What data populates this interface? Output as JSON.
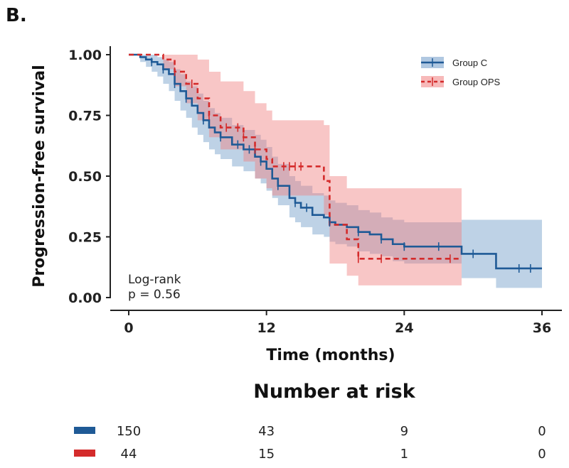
{
  "panel_label": "B.",
  "chart_data": {
    "type": "line",
    "subtype": "kaplan-meier",
    "title": "",
    "xlabel": "Time (months)",
    "ylabel": "Progression-free survival",
    "xlim": [
      0,
      36
    ],
    "ylim": [
      0,
      1
    ],
    "xticks": [
      0,
      12,
      24,
      36
    ],
    "yticks": [
      0.0,
      0.25,
      0.5,
      0.75,
      1.0
    ],
    "ytick_labels": [
      "0.00",
      "0.25",
      "0.50",
      "0.75",
      "1.00"
    ],
    "xtick_labels": [
      "0",
      "12",
      "24",
      "36"
    ],
    "legend_position": "top-right",
    "annotation": [
      "Log-rank",
      "p = 0.56"
    ],
    "series": [
      {
        "name": "Group C",
        "color": "#1f5a96",
        "band_color": "#6f9bc8",
        "style": "solid",
        "x": [
          0,
          1,
          1.5,
          2,
          2.5,
          3,
          3.5,
          4,
          4.5,
          5,
          5.5,
          6,
          6.5,
          7,
          7.5,
          8,
          9,
          10,
          11,
          11.5,
          12,
          12.5,
          13,
          14,
          14.5,
          15,
          16,
          17,
          17.5,
          18,
          19,
          20,
          21,
          22,
          23,
          24,
          29,
          32,
          36
        ],
        "y": [
          1.0,
          0.99,
          0.98,
          0.97,
          0.96,
          0.94,
          0.92,
          0.88,
          0.85,
          0.82,
          0.79,
          0.76,
          0.73,
          0.7,
          0.68,
          0.66,
          0.63,
          0.61,
          0.58,
          0.56,
          0.53,
          0.49,
          0.46,
          0.41,
          0.39,
          0.37,
          0.34,
          0.33,
          0.31,
          0.3,
          0.29,
          0.27,
          0.26,
          0.24,
          0.22,
          0.21,
          0.18,
          0.12,
          0.12
        ],
        "ci_upper": [
          1.0,
          1.0,
          1.0,
          1.0,
          0.99,
          0.98,
          0.97,
          0.94,
          0.92,
          0.89,
          0.87,
          0.84,
          0.81,
          0.78,
          0.76,
          0.74,
          0.71,
          0.69,
          0.67,
          0.65,
          0.62,
          0.58,
          0.55,
          0.5,
          0.48,
          0.46,
          0.43,
          0.42,
          0.4,
          0.39,
          0.38,
          0.36,
          0.35,
          0.33,
          0.32,
          0.31,
          0.32,
          0.32,
          0.32
        ],
        "ci_lower": [
          1.0,
          0.97,
          0.95,
          0.93,
          0.91,
          0.88,
          0.85,
          0.81,
          0.77,
          0.74,
          0.7,
          0.67,
          0.64,
          0.61,
          0.59,
          0.57,
          0.54,
          0.52,
          0.49,
          0.47,
          0.44,
          0.41,
          0.38,
          0.33,
          0.31,
          0.29,
          0.26,
          0.25,
          0.23,
          0.22,
          0.21,
          0.19,
          0.18,
          0.17,
          0.15,
          0.14,
          0.08,
          0.04,
          0.04
        ],
        "censor_x": [
          2,
          3,
          4,
          5,
          6.5,
          8,
          9.5,
          10.5,
          11.5,
          13,
          14.5,
          15.5,
          17.5,
          20,
          22,
          24,
          27,
          30,
          34,
          35
        ]
      },
      {
        "name": "Group OPS",
        "color": "#d42b2b",
        "band_color": "#f08080",
        "style": "dashed",
        "x": [
          0,
          3,
          4,
          5,
          6,
          7,
          8,
          10,
          11,
          12,
          12.5,
          17,
          17.5,
          19,
          20,
          29
        ],
        "y": [
          1.0,
          0.98,
          0.93,
          0.88,
          0.82,
          0.75,
          0.7,
          0.66,
          0.61,
          0.57,
          0.54,
          0.48,
          0.3,
          0.24,
          0.16,
          0.16
        ],
        "ci_upper": [
          1.0,
          1.0,
          1.0,
          1.0,
          0.98,
          0.93,
          0.89,
          0.85,
          0.8,
          0.77,
          0.73,
          0.71,
          0.5,
          0.45,
          0.45,
          0.45
        ],
        "ci_lower": [
          1.0,
          0.94,
          0.87,
          0.8,
          0.73,
          0.66,
          0.61,
          0.56,
          0.49,
          0.45,
          0.42,
          0.34,
          0.14,
          0.09,
          0.05,
          0.05
        ],
        "censor_x": [
          4,
          5.5,
          7,
          8.5,
          9.5,
          10,
          11,
          13.5,
          14,
          14.5,
          15,
          20,
          22,
          28
        ]
      }
    ],
    "risk_table": {
      "title": "Number at risk",
      "times": [
        0,
        12,
        24,
        36
      ],
      "rows": [
        {
          "group": "Group C",
          "color": "#1f5a96",
          "counts": [
            "150",
            "43",
            "9",
            "0"
          ]
        },
        {
          "group": "Group OPS",
          "color": "#d42b2b",
          "counts": [
            "44",
            "15",
            "1",
            "0"
          ]
        }
      ]
    }
  }
}
